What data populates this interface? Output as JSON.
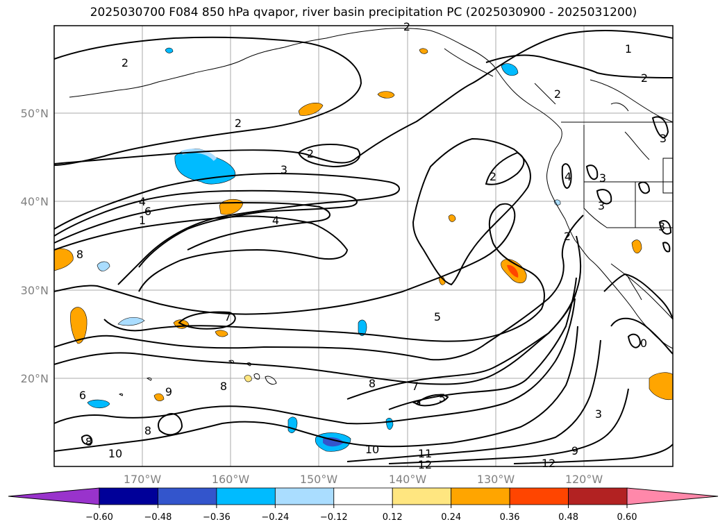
{
  "title": "2025030700 F084 850 hPa qvapor, river basin precipitation PC (2025030900 - 2025031200)",
  "latitude_labels": [
    "50°N",
    "40°N",
    "30°N",
    "20°N"
  ],
  "longitude_labels": [
    "170°W",
    "160°W",
    "150°W",
    "140°W",
    "130°W",
    "120°W"
  ],
  "contour_labels": [
    "2",
    "1",
    "2",
    "2",
    "2",
    "2",
    "3",
    "2",
    "4",
    "6",
    "1",
    "4",
    "2",
    "3",
    "3",
    "3",
    "2",
    "8",
    "7",
    "5",
    "7",
    "8",
    "9",
    "8",
    "8",
    "6",
    "8",
    "5",
    "3",
    "10",
    "10",
    "11",
    "12",
    "12",
    "9",
    "4",
    "3",
    "0"
  ],
  "colorbar": {
    "ticks": [
      "−0.60",
      "−0.48",
      "−0.36",
      "−0.24",
      "−0.12",
      "0.12",
      "0.24",
      "0.36",
      "0.48",
      "0.60"
    ],
    "colors": [
      "#9933cc",
      "#000099",
      "#3355cc",
      "#00bbff",
      "#aaddff",
      "#ffffff",
      "#ffe680",
      "#ffa500",
      "#ff4500",
      "#b22222",
      "#ff88aa"
    ]
  }
}
